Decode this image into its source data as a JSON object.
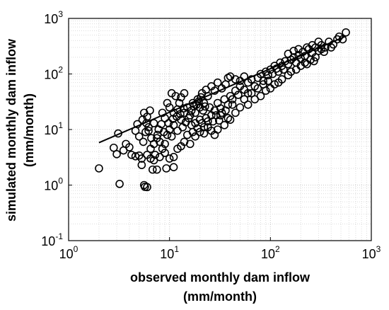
{
  "chart_data": {
    "type": "scatter",
    "xlabel": [
      "observed monthly dam inflow",
      "(mm/month)"
    ],
    "ylabel": [
      "simulated monthly dam inflow",
      "(mm/month)"
    ],
    "x_scale": "log",
    "y_scale": "log",
    "xlim": [
      1,
      1000
    ],
    "ylim": [
      0.1,
      1000
    ],
    "x_ticks": [
      {
        "base": "10",
        "exp": "0"
      },
      {
        "base": "10",
        "exp": "1"
      },
      {
        "base": "10",
        "exp": "2"
      },
      {
        "base": "10",
        "exp": "3"
      }
    ],
    "y_ticks": [
      {
        "base": "10",
        "exp": "-1"
      },
      {
        "base": "10",
        "exp": "0"
      },
      {
        "base": "10",
        "exp": "1"
      },
      {
        "base": "10",
        "exp": "2"
      },
      {
        "base": "10",
        "exp": "3"
      }
    ],
    "x_tick_values": [
      1,
      10,
      100,
      1000
    ],
    "y_tick_values": [
      0.1,
      1,
      10,
      100,
      1000
    ],
    "grid": true,
    "minor_grid": true,
    "legend": "none",
    "marker": "open-circle",
    "marker_color": "#000000",
    "fit_line": {
      "x": [
        2,
        560
      ],
      "y": [
        5.8,
        480
      ]
    },
    "series": [
      {
        "marker": "circle-open",
        "points": [
          [
            2.0,
            2.0
          ],
          [
            3.2,
            1.05
          ],
          [
            5.6,
            1.0
          ],
          [
            6.0,
            0.92
          ],
          [
            5.7,
            0.93
          ],
          [
            5.3,
            2.3
          ],
          [
            6.8,
            1.9
          ],
          [
            7.5,
            1.9
          ],
          [
            9.3,
            2.0
          ],
          [
            11.0,
            2.1
          ],
          [
            3.1,
            8.5
          ],
          [
            2.8,
            4.7
          ],
          [
            3.0,
            3.6
          ],
          [
            3.5,
            4.2
          ],
          [
            4.0,
            4.8
          ],
          [
            4.2,
            3.5
          ],
          [
            3.7,
            5.5
          ],
          [
            4.6,
            3.3
          ],
          [
            5.0,
            3.4
          ],
          [
            5.3,
            3.0
          ],
          [
            5.5,
            6.0
          ],
          [
            5.0,
            7.5
          ],
          [
            5.8,
            9.0
          ],
          [
            6.2,
            11.0
          ],
          [
            5.4,
            15.0
          ],
          [
            4.8,
            12.5
          ],
          [
            4.6,
            9.5
          ],
          [
            5.6,
            20.0
          ],
          [
            6.4,
            22.0
          ],
          [
            6.0,
            17.0
          ],
          [
            6.5,
            4.5
          ],
          [
            7.0,
            5.5
          ],
          [
            7.5,
            7.0
          ],
          [
            8.0,
            6.0
          ],
          [
            8.5,
            4.5
          ],
          [
            9.0,
            5.5
          ],
          [
            7.2,
            3.5
          ],
          [
            7.8,
            10.0
          ],
          [
            8.3,
            12.5
          ],
          [
            7.0,
            13.0
          ],
          [
            9.5,
            8.0
          ],
          [
            10.0,
            10.0
          ],
          [
            10.5,
            7.5
          ],
          [
            11.0,
            12.0
          ],
          [
            12.0,
            9.5
          ],
          [
            13.0,
            15.0
          ],
          [
            9.0,
            16.0
          ],
          [
            8.5,
            20.0
          ],
          [
            10.0,
            25.0
          ],
          [
            9.5,
            30.0
          ],
          [
            11.0,
            20.0
          ],
          [
            12.0,
            23.0
          ],
          [
            12.5,
            30.0
          ],
          [
            14.0,
            20.0
          ],
          [
            15.0,
            25.0
          ],
          [
            11.5,
            40.0
          ],
          [
            13.0,
            38.0
          ],
          [
            14.0,
            45.0
          ],
          [
            10.5,
            45.0
          ],
          [
            16.0,
            18.0
          ],
          [
            17.0,
            30.0
          ],
          [
            18.0,
            20.0
          ],
          [
            19.0,
            35.0
          ],
          [
            20.0,
            25.0
          ],
          [
            21.0,
            45.0
          ],
          [
            22.0,
            30.0
          ],
          [
            16.5,
            12.0
          ],
          [
            18.0,
            13.0
          ],
          [
            20.0,
            15.0
          ],
          [
            15.0,
            8.0
          ],
          [
            14.0,
            6.0
          ],
          [
            13.0,
            5.0
          ],
          [
            18.0,
            7.5
          ],
          [
            20.0,
            9.0
          ],
          [
            22.0,
            11.0
          ],
          [
            24.0,
            14.0
          ],
          [
            26.0,
            18.0
          ],
          [
            25.0,
            25.0
          ],
          [
            28.0,
            22.0
          ],
          [
            30.0,
            30.0
          ],
          [
            32.0,
            24.0
          ],
          [
            35.0,
            35.0
          ],
          [
            38.0,
            28.0
          ],
          [
            40.0,
            40.0
          ],
          [
            42.0,
            35.0
          ],
          [
            45.0,
            50.0
          ],
          [
            48.0,
            42.0
          ],
          [
            50.0,
            60.0
          ],
          [
            55.0,
            52.0
          ],
          [
            60.0,
            45.0
          ],
          [
            33.0,
            55.0
          ],
          [
            36.0,
            65.0
          ],
          [
            38.0,
            85.0
          ],
          [
            40.0,
            90.0
          ],
          [
            30.0,
            70.0
          ],
          [
            28.0,
            50.0
          ],
          [
            26.0,
            60.0
          ],
          [
            24.0,
            40.0
          ],
          [
            23.0,
            52.0
          ],
          [
            45.0,
            80.0
          ],
          [
            50.0,
            75.0
          ],
          [
            55.0,
            90.0
          ],
          [
            60.0,
            70.0
          ],
          [
            65.0,
            80.0
          ],
          [
            70.0,
            60.0
          ],
          [
            75.0,
            85.0
          ],
          [
            80.0,
            100.0
          ],
          [
            85.0,
            75.0
          ],
          [
            90.0,
            110.0
          ],
          [
            95.0,
            95.0
          ],
          [
            100.0,
            120.0
          ],
          [
            105.0,
            100.0
          ],
          [
            110.0,
            140.0
          ],
          [
            115.0,
            125.0
          ],
          [
            120.0,
            110.0
          ],
          [
            125.0,
            160.0
          ],
          [
            130.0,
            140.0
          ],
          [
            135.0,
            120.0
          ],
          [
            140.0,
            170.0
          ],
          [
            150.0,
            150.0
          ],
          [
            160.0,
            180.0
          ],
          [
            170.0,
            200.0
          ],
          [
            180.0,
            160.0
          ],
          [
            190.0,
            220.0
          ],
          [
            200.0,
            190.0
          ],
          [
            210.0,
            250.0
          ],
          [
            220.0,
            210.0
          ],
          [
            240.0,
            280.0
          ],
          [
            260.0,
            240.0
          ],
          [
            280.0,
            300.0
          ],
          [
            300.0,
            260.0
          ],
          [
            320.0,
            330.0
          ],
          [
            350.0,
            300.0
          ],
          [
            380.0,
            380.0
          ],
          [
            420.0,
            340.0
          ],
          [
            460.0,
            420.0
          ],
          [
            560.0,
            560.0
          ],
          [
            520.0,
            420.0
          ],
          [
            480.0,
            470.0
          ],
          [
            400.0,
            300.0
          ],
          [
            70.0,
            35.0
          ],
          [
            80.0,
            40.0
          ],
          [
            90.0,
            50.0
          ],
          [
            100.0,
            55.0
          ],
          [
            110.0,
            65.0
          ],
          [
            120.0,
            70.0
          ],
          [
            130.0,
            80.0
          ],
          [
            150.0,
            95.0
          ],
          [
            160.0,
            110.0
          ],
          [
            180.0,
            120.0
          ],
          [
            200.0,
            140.0
          ],
          [
            220.0,
            160.0
          ],
          [
            250.0,
            180.0
          ],
          [
            280.0,
            200.0
          ],
          [
            60.0,
            28.0
          ],
          [
            50.0,
            25.0
          ],
          [
            45.0,
            20.0
          ],
          [
            40.0,
            15.0
          ],
          [
            35.0,
            12.0
          ],
          [
            30.0,
            10.0
          ],
          [
            28.0,
            8.0
          ],
          [
            32.0,
            18.0
          ],
          [
            36.0,
            22.0
          ],
          [
            42.0,
            28.0
          ],
          [
            38.0,
            16.0
          ],
          [
            55.0,
            35.0
          ],
          [
            65.0,
            45.0
          ],
          [
            75.0,
            55.0
          ],
          [
            85.0,
            65.0
          ],
          [
            95.0,
            75.0
          ],
          [
            12.0,
            4.5
          ],
          [
            11.0,
            3.2
          ],
          [
            10.0,
            3.0
          ],
          [
            9.0,
            3.8
          ],
          [
            8.0,
            3.2
          ],
          [
            7.0,
            2.8
          ],
          [
            6.5,
            3.0
          ],
          [
            6.0,
            3.5
          ],
          [
            16.0,
            5.5
          ],
          [
            17.0,
            9.0
          ],
          [
            19.0,
            10.5
          ],
          [
            21.0,
            13.0
          ],
          [
            23.0,
            16.0
          ],
          [
            27.0,
            14.0
          ],
          [
            29.0,
            18.0
          ],
          [
            31.0,
            14.5
          ],
          [
            33.0,
            20.0
          ],
          [
            24.0,
            11.0
          ],
          [
            22.0,
            8.5
          ],
          [
            26.0,
            9.5
          ],
          [
            13.5,
            11.0
          ],
          [
            14.5,
            13.5
          ],
          [
            15.5,
            16.0
          ],
          [
            16.5,
            22.0
          ],
          [
            17.5,
            26.0
          ],
          [
            18.5,
            28.0
          ],
          [
            19.5,
            32.0
          ],
          [
            20.5,
            38.0
          ],
          [
            21.5,
            22.0
          ],
          [
            22.5,
            26.0
          ],
          [
            8.8,
            9.0
          ],
          [
            9.8,
            13.0
          ],
          [
            10.8,
            15.5
          ],
          [
            11.8,
            17.0
          ],
          [
            12.8,
            19.0
          ],
          [
            13.8,
            24.0
          ],
          [
            7.6,
            8.0
          ],
          [
            6.6,
            7.0
          ],
          [
            6.2,
            9.5
          ],
          [
            5.9,
            13.0
          ],
          [
            150.0,
            230.0
          ],
          [
            170.0,
            260.0
          ],
          [
            190.0,
            280.0
          ],
          [
            230.0,
            300.0
          ],
          [
            260.0,
            330.0
          ],
          [
            300.0,
            380.0
          ],
          [
            320.0,
            280.0
          ],
          [
            340.0,
            250.0
          ],
          [
            270.0,
            170.0
          ],
          [
            230.0,
            150.0
          ]
        ]
      }
    ]
  }
}
